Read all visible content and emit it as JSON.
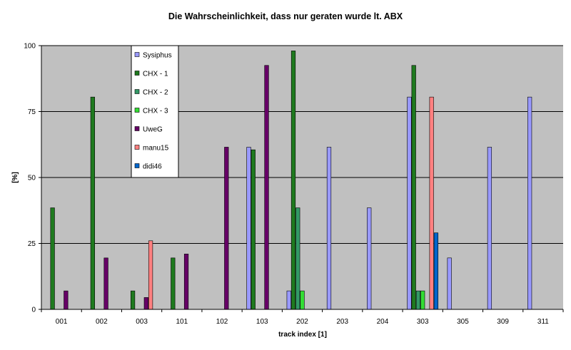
{
  "chart_data": {
    "type": "bar",
    "title": "Die Wahrscheinlichkeit, dass nur geraten wurde lt. ABX",
    "xlabel": "track index [1]",
    "ylabel": "[%]",
    "ylim": [
      0,
      100
    ],
    "yticks": [
      0,
      25,
      50,
      75,
      100
    ],
    "grid": true,
    "legend_position": "top-left",
    "categories": [
      "001",
      "002",
      "003",
      "101",
      "102",
      "103",
      "202",
      "203",
      "204",
      "303",
      "305",
      "309",
      "311"
    ],
    "series": [
      {
        "name": "Sysiphus",
        "color": "#9999ff",
        "values": [
          null,
          null,
          null,
          null,
          null,
          61.5,
          7,
          61.5,
          38.5,
          80.5,
          19.5,
          61.5,
          80.5
        ]
      },
      {
        "name": "CHX - 1",
        "color": "#1f7a1f",
        "values": [
          38.5,
          80.5,
          7,
          19.5,
          null,
          60.5,
          98,
          null,
          null,
          92.5,
          null,
          null,
          null
        ]
      },
      {
        "name": "CHX - 2",
        "color": "#339966",
        "values": [
          null,
          null,
          null,
          null,
          null,
          null,
          38.5,
          null,
          null,
          7,
          null,
          null,
          null
        ]
      },
      {
        "name": "CHX - 3",
        "color": "#33dd33",
        "values": [
          null,
          null,
          null,
          null,
          null,
          null,
          7,
          null,
          null,
          7,
          null,
          null,
          null
        ]
      },
      {
        "name": "UweG",
        "color": "#660066",
        "values": [
          7,
          19.5,
          4.5,
          21,
          61.5,
          92.5,
          null,
          null,
          null,
          null,
          null,
          null,
          null
        ]
      },
      {
        "name": "manu15",
        "color": "#ff8080",
        "values": [
          null,
          null,
          26,
          null,
          null,
          null,
          null,
          null,
          null,
          80.5,
          null,
          null,
          null
        ]
      },
      {
        "name": "didi46",
        "color": "#0066cc",
        "values": [
          null,
          null,
          null,
          null,
          null,
          null,
          null,
          null,
          null,
          29,
          null,
          null,
          null
        ]
      }
    ]
  }
}
